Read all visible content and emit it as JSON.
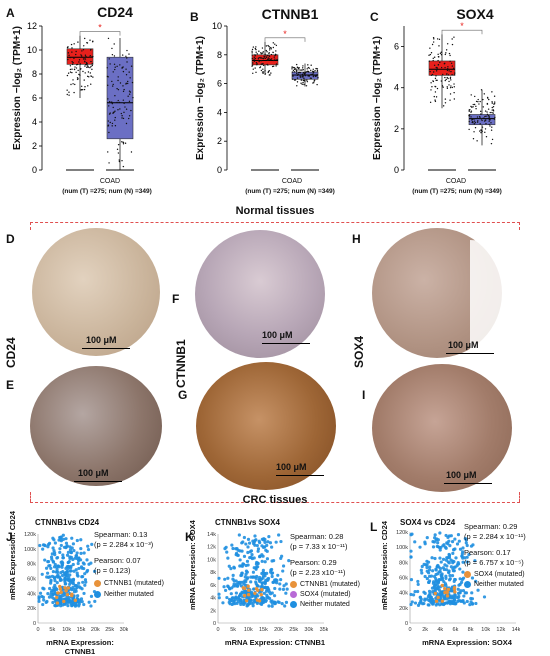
{
  "panels_top": [
    {
      "letter": "A",
      "title": "CD24",
      "ylabel": "Expression −log₂ (TPM+1)",
      "xtick": "COAD",
      "num": "(num (T) =275; num (N) =349)",
      "star": "*"
    },
    {
      "letter": "B",
      "title": "CTNNB1",
      "ylabel": "Expression −log₂ (TPM+1)",
      "xtick": "COAD",
      "num": "(num (T) =275; num (N) =349)",
      "star": "*"
    },
    {
      "letter": "C",
      "title": "SOX4",
      "ylabel": "Expression −log₂ (TPM+1)",
      "xtick": "COAD",
      "num": "(num (T) =275; num (N) =349)",
      "star": "*"
    }
  ],
  "chart_data": [
    {
      "type": "box",
      "title": "CD24",
      "ylabel": "Expression −log₂ (TPM+1)",
      "ylim": [
        0,
        12
      ],
      "yticks": [
        0,
        2,
        4,
        6,
        8,
        10,
        12
      ],
      "categories": [
        "COAD"
      ],
      "series": [
        {
          "name": "T",
          "q1": 8.8,
          "median": 9.4,
          "q3": 10.1,
          "low": 6.0,
          "high": 11.2
        },
        {
          "name": "N",
          "q1": 2.6,
          "median": 5.6,
          "q3": 9.4,
          "low": 0.0,
          "high": 11.0
        }
      ]
    },
    {
      "type": "box",
      "title": "CTNNB1",
      "ylabel": "Expression −log₂ (TPM+1)",
      "ylim": [
        0,
        10
      ],
      "yticks": [
        0,
        2,
        4,
        6,
        8,
        10
      ],
      "categories": [
        "COAD"
      ],
      "series": [
        {
          "name": "T",
          "q1": 7.3,
          "median": 7.6,
          "q3": 8.0,
          "low": 6.6,
          "high": 8.9
        },
        {
          "name": "N",
          "q1": 6.3,
          "median": 6.6,
          "q3": 6.8,
          "low": 5.8,
          "high": 7.4
        }
      ]
    },
    {
      "type": "box",
      "title": "SOX4",
      "ylabel": "Expression −log₂ (TPM+1)",
      "ylim": [
        0,
        7
      ],
      "yticks": [
        0,
        2,
        4,
        6
      ],
      "categories": [
        "COAD"
      ],
      "series": [
        {
          "name": "T",
          "q1": 4.6,
          "median": 4.9,
          "q3": 5.3,
          "low": 3.0,
          "high": 6.6
        },
        {
          "name": "N",
          "q1": 2.2,
          "median": 2.5,
          "q3": 2.7,
          "low": 1.2,
          "high": 3.9
        }
      ]
    },
    {
      "type": "scatter",
      "title": "CTNNB1vs CD24",
      "xlabel": "mRNA Expression: CTNNB1",
      "ylabel": "mRNA Expression: CD24",
      "xticks": [
        "0",
        "5k",
        "10k",
        "15k",
        "20k",
        "25k",
        "30k"
      ],
      "yticks": [
        "0",
        "20k",
        "40k",
        "60k",
        "80k",
        "100k",
        "120k"
      ]
    },
    {
      "type": "scatter",
      "title": "CTNNB1vs SOX4",
      "xlabel": "mRNA Expression: CTNNB1",
      "ylabel": "mRNA Expression: SOX4",
      "xticks": [
        "0",
        "5k",
        "10k",
        "15k",
        "20k",
        "25k",
        "30k",
        "35k"
      ],
      "yticks": [
        "0",
        "2k",
        "4k",
        "6k",
        "8k",
        "10k",
        "12k",
        "14k"
      ]
    },
    {
      "type": "scatter",
      "title": "SOX4 vs CD24",
      "xlabel": "mRNA Expression: SOX4",
      "ylabel": "mRNA Expression: CD24",
      "xticks": [
        "0",
        "2k",
        "4k",
        "6k",
        "8k",
        "10k",
        "12k",
        "14k"
      ],
      "yticks": [
        "0",
        "20k",
        "40k",
        "60k",
        "80k",
        "100k",
        "120k"
      ]
    }
  ],
  "section": {
    "normal": "Normal tissues",
    "crc": "CRC tissues"
  },
  "ihc": {
    "letters": [
      "D",
      "F",
      "H",
      "E",
      "G",
      "I"
    ],
    "side_labels": [
      "CD24",
      "CTNNB1",
      "SOX4"
    ],
    "scale": "100 μM"
  },
  "scatter_panels": [
    {
      "letter": "J",
      "title": "CTNNB1vs CD24",
      "spearman": "Spearman: 0.13",
      "sp_p": "(p = 2.284 x 10⁻³)",
      "pearson": "Pearson: 0.07",
      "pe_p": "(p = 0.123)",
      "leg1": "CTNNB1 (mutated)",
      "leg2": "Neither mutated"
    },
    {
      "letter": "K",
      "title": "CTNNB1vs SOX4",
      "spearman": "Spearman: 0.28",
      "sp_p": "(p = 7.33 x 10⁻¹¹)",
      "pearson": "Pearson: 0.29",
      "pe_p": "(p = 2.23 x10⁻¹¹)",
      "leg1": "CTNNB1 (mutated)",
      "leg2": "SOX4 (mutated)",
      "leg3": "Neither mutated"
    },
    {
      "letter": "L",
      "title": "SOX4 vs CD24",
      "spearman": "Spearman: 0.29",
      "sp_p": "(p = 2.284 x 10⁻¹¹)",
      "pearson": "Pearson: 0.17",
      "pe_p": "(p = 6.757 x 10⁻⁵)",
      "leg1": "SOX4 (mutated)",
      "leg2": "Neither mutated"
    }
  ],
  "colors": {
    "tumor": "#e8201c",
    "normal": "#6b6fc4",
    "dots": "#1f8fe0",
    "mut": "#e8923a",
    "dash": "#e05050"
  }
}
